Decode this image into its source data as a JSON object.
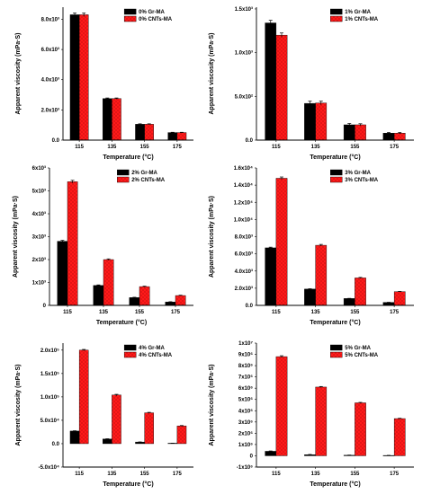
{
  "colors": {
    "black_series": "#000000",
    "red_series": "#ff1a1a",
    "dot_pattern": "#7a0000"
  },
  "chart_data": [
    {
      "type": "bar",
      "categories": [
        "115",
        "135",
        "155",
        "175"
      ],
      "series": [
        {
          "name": "0% Gr-MA",
          "color": "#000000",
          "values": [
            8300,
            2750,
            1050,
            500
          ],
          "errors": [
            120,
            40,
            30,
            20
          ]
        },
        {
          "name": "0% CNTs-MA",
          "color": "#ff1a1a",
          "values": [
            8300,
            2750,
            1050,
            500
          ],
          "errors": [
            120,
            40,
            30,
            20
          ]
        }
      ],
      "xlabel": "Temperature (°C)",
      "ylabel": "Apparent viscosity (mPa·S)",
      "ylim": [
        0,
        8800
      ],
      "yticks": [
        0,
        2000,
        4000,
        6000,
        8000
      ],
      "yticklabels": [
        "0.0",
        "2.0x10³",
        "4.0x10³",
        "6.0x10³",
        "8.0x10³"
      ],
      "legend": "top-right"
    },
    {
      "type": "bar",
      "categories": [
        "115",
        "135",
        "155",
        "175"
      ],
      "series": [
        {
          "name": "1% Gr-MA",
          "color": "#000000",
          "values": [
            1340,
            420,
            175,
            80
          ],
          "errors": [
            30,
            25,
            15,
            8
          ]
        },
        {
          "name": "1% CNTs-MA",
          "color": "#ff1a1a",
          "values": [
            1200,
            425,
            175,
            80
          ],
          "errors": [
            25,
            20,
            12,
            8
          ]
        }
      ],
      "xlabel": "Temperature (°C)",
      "ylabel": "Apparent viscosity (mPa·S)",
      "ylim": [
        0,
        1520
      ],
      "yticks": [
        0,
        500,
        1000,
        1500
      ],
      "yticklabels": [
        "0.0",
        "5.0x10²",
        "1.0x10³",
        "1.5x10³"
      ],
      "legend": "top-right"
    },
    {
      "type": "bar",
      "categories": [
        "115",
        "135",
        "155",
        "175"
      ],
      "series": [
        {
          "name": "2% Gr-MA",
          "color": "#000000",
          "values": [
            2800,
            870,
            340,
            150
          ],
          "errors": [
            40,
            25,
            15,
            10
          ]
        },
        {
          "name": "2% CNTs-MA",
          "color": "#ff1a1a",
          "values": [
            5400,
            2000,
            820,
            430
          ],
          "errors": [
            60,
            30,
            20,
            15
          ]
        }
      ],
      "xlabel": "Temperature (°C)",
      "ylabel": "Apparent viscosity (mPa·S)",
      "ylim": [
        0,
        6000
      ],
      "yticks": [
        0,
        1000,
        2000,
        3000,
        4000,
        5000,
        6000
      ],
      "yticklabels": [
        "0",
        "1x10³",
        "2x10³",
        "3x10³",
        "4x10³",
        "5x10³",
        "6x10³"
      ],
      "legend": "top-right"
    },
    {
      "type": "bar",
      "categories": [
        "115",
        "135",
        "155",
        "175"
      ],
      "series": [
        {
          "name": "3% Gr-MA",
          "color": "#000000",
          "values": [
            6700,
            1900,
            800,
            350
          ],
          "errors": [
            80,
            40,
            20,
            10
          ]
        },
        {
          "name": "3% CNTs-MA",
          "color": "#ff1a1a",
          "values": [
            14800,
            7000,
            3200,
            1600
          ],
          "errors": [
            150,
            100,
            60,
            30
          ]
        }
      ],
      "xlabel": "Temperature (°C)",
      "ylabel": "Apparent viscosity (mPa·S)",
      "ylim": [
        0,
        16000
      ],
      "yticks": [
        0,
        2000,
        4000,
        6000,
        8000,
        10000,
        12000,
        14000,
        16000
      ],
      "yticklabels": [
        "0.0",
        "2.0x10³",
        "4.0x10³",
        "6.0x10³",
        "8.0x10³",
        "1.0x10⁴",
        "1.2x10⁴",
        "1.4x10⁴",
        "1.6x10⁴"
      ],
      "legend": "top-right"
    },
    {
      "type": "bar",
      "categories": [
        "115",
        "135",
        "155",
        "175"
      ],
      "series": [
        {
          "name": "4% Gr-MA",
          "color": "#000000",
          "values": [
            27000,
            10000,
            3500,
            1000
          ],
          "errors": [
            600,
            500,
            300,
            200
          ]
        },
        {
          "name": "4% CNTs-MA",
          "color": "#ff1a1a",
          "values": [
            200000,
            104000,
            66000,
            38000
          ],
          "errors": [
            1500,
            1500,
            1000,
            800
          ]
        }
      ],
      "xlabel": "Temperature (°C)",
      "ylabel": "Apparent viscosity (mPa·S)",
      "ylim": [
        -50000,
        215000
      ],
      "yticks": [
        -50000,
        0,
        50000,
        100000,
        150000,
        200000
      ],
      "yticklabels": [
        "-5.0x10⁴",
        "0.0",
        "5.0x10⁴",
        "1.0x10⁵",
        "1.5x10⁵",
        "2.0x10⁵"
      ],
      "legend": "top-right"
    },
    {
      "type": "bar",
      "categories": [
        "115",
        "135",
        "155",
        "175"
      ],
      "series": [
        {
          "name": "5% Gr-MA",
          "color": "#000000",
          "values": [
            400000,
            100000,
            50000,
            30000
          ],
          "errors": [
            30000,
            20000,
            15000,
            10000
          ]
        },
        {
          "name": "5% CNTs-MA",
          "color": "#ff1a1a",
          "values": [
            8800000,
            6100000,
            4700000,
            3300000
          ],
          "errors": [
            80000,
            50000,
            40000,
            30000
          ]
        }
      ],
      "xlabel": "Temperature (°C)",
      "ylabel": "Apparent viscosity (mPa·S)",
      "ylim": [
        -1000000,
        10000000
      ],
      "yticks": [
        -1000000,
        0,
        1000000,
        2000000,
        3000000,
        4000000,
        5000000,
        6000000,
        7000000,
        8000000,
        9000000,
        10000000
      ],
      "yticklabels": [
        "-1x10⁶",
        "0",
        "1x10⁶",
        "2x10⁶",
        "3x10⁶",
        "4x10⁶",
        "5x10⁶",
        "6x10⁶",
        "7x10⁶",
        "8x10⁶",
        "9x10⁶",
        "1x10⁷"
      ],
      "legend": "top-right"
    }
  ]
}
